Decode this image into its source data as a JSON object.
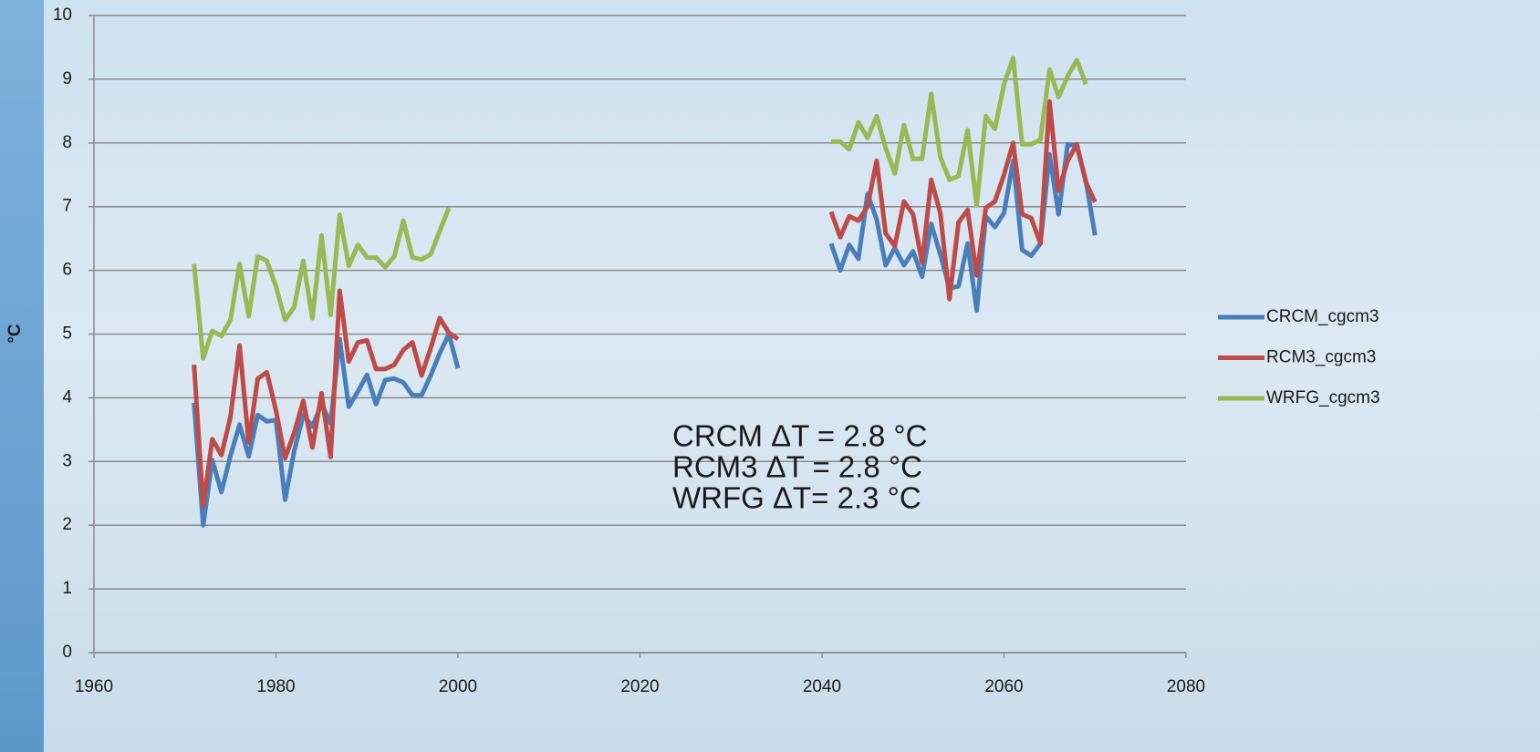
{
  "chart_data": {
    "type": "line",
    "y_label": "°C",
    "x": [
      1971,
      1972,
      1973,
      1974,
      1975,
      1976,
      1977,
      1978,
      1979,
      1980,
      1981,
      1982,
      1983,
      1984,
      1985,
      1986,
      1987,
      1988,
      1989,
      1990,
      1991,
      1992,
      1993,
      1994,
      1995,
      1996,
      1997,
      1998,
      1999,
      2000,
      null,
      2041,
      2042,
      2043,
      2044,
      2045,
      2046,
      2047,
      2048,
      2049,
      2050,
      2051,
      2052,
      2053,
      2054,
      2055,
      2056,
      2057,
      2058,
      2059,
      2060,
      2061,
      2062,
      2063,
      2064,
      2065,
      2066,
      2067,
      2068,
      2069,
      2070
    ],
    "series": [
      {
        "name": "CRCM_cgcm3",
        "color": "#4a7ebb",
        "values": [
          3.92,
          2.0,
          3.02,
          2.52,
          3.09,
          3.58,
          3.08,
          3.73,
          3.63,
          3.65,
          2.4,
          3.16,
          3.73,
          3.55,
          3.9,
          3.6,
          4.92,
          3.86,
          4.1,
          4.36,
          3.9,
          4.28,
          4.3,
          4.24,
          4.04,
          4.04,
          4.35,
          4.7,
          5.0,
          4.46,
          null,
          6.42,
          6.0,
          6.4,
          6.18,
          7.2,
          6.8,
          6.08,
          6.35,
          6.08,
          6.3,
          5.9,
          6.73,
          6.25,
          5.72,
          5.75,
          6.42,
          5.37,
          6.85,
          6.68,
          6.9,
          7.72,
          6.32,
          6.23,
          6.42,
          7.82,
          6.88,
          7.98,
          7.95,
          7.4,
          6.55
        ]
      },
      {
        "name": "RCM3_cgcm3",
        "color": "#be4b48",
        "values": [
          4.52,
          2.3,
          3.35,
          3.1,
          3.7,
          4.82,
          3.3,
          4.3,
          4.4,
          3.8,
          3.05,
          3.45,
          3.95,
          3.22,
          4.07,
          3.07,
          5.68,
          4.57,
          4.87,
          4.9,
          4.45,
          4.45,
          4.52,
          4.75,
          4.87,
          4.35,
          4.78,
          5.25,
          5.02,
          4.92,
          null,
          6.92,
          6.52,
          6.85,
          6.78,
          7.0,
          7.72,
          6.58,
          6.38,
          7.08,
          6.88,
          6.12,
          7.42,
          6.9,
          5.55,
          6.75,
          6.95,
          5.92,
          6.98,
          7.08,
          7.5,
          8.0,
          6.88,
          6.82,
          6.42,
          8.65,
          7.25,
          7.72,
          7.98,
          7.38,
          7.07
        ]
      },
      {
        "name": "WRFG_cgcm3",
        "color": "#98b954",
        "values": [
          6.1,
          4.62,
          5.05,
          4.97,
          5.22,
          6.1,
          5.28,
          6.22,
          6.15,
          5.75,
          5.22,
          5.42,
          6.15,
          5.25,
          6.55,
          5.3,
          6.87,
          6.07,
          6.4,
          6.2,
          6.2,
          6.05,
          6.22,
          6.78,
          6.2,
          6.17,
          6.25,
          6.62,
          6.98,
          null,
          null,
          8.02,
          8.02,
          7.9,
          8.32,
          8.08,
          8.42,
          7.92,
          7.52,
          8.28,
          7.75,
          7.75,
          8.77,
          7.78,
          7.42,
          7.48,
          8.2,
          7.02,
          8.42,
          8.22,
          8.92,
          9.33,
          7.98,
          7.98,
          8.05,
          9.15,
          8.72,
          9.05,
          9.3,
          8.92,
          null
        ]
      }
    ],
    "annotations": [
      "CRCM  ΔT = 2.8 °C",
      "RCM3  ΔT = 2.8 °C",
      "WRFG  ΔT= 2.3 °C"
    ],
    "xlim": [
      1960,
      2080
    ],
    "xticks": [
      1960,
      1980,
      2000,
      2020,
      2040,
      2060,
      2080
    ],
    "ylim": [
      0,
      10
    ],
    "yticks": [
      0,
      1,
      2,
      3,
      4,
      5,
      6,
      7,
      8,
      9,
      10
    ],
    "grid": true,
    "legend": "right"
  }
}
